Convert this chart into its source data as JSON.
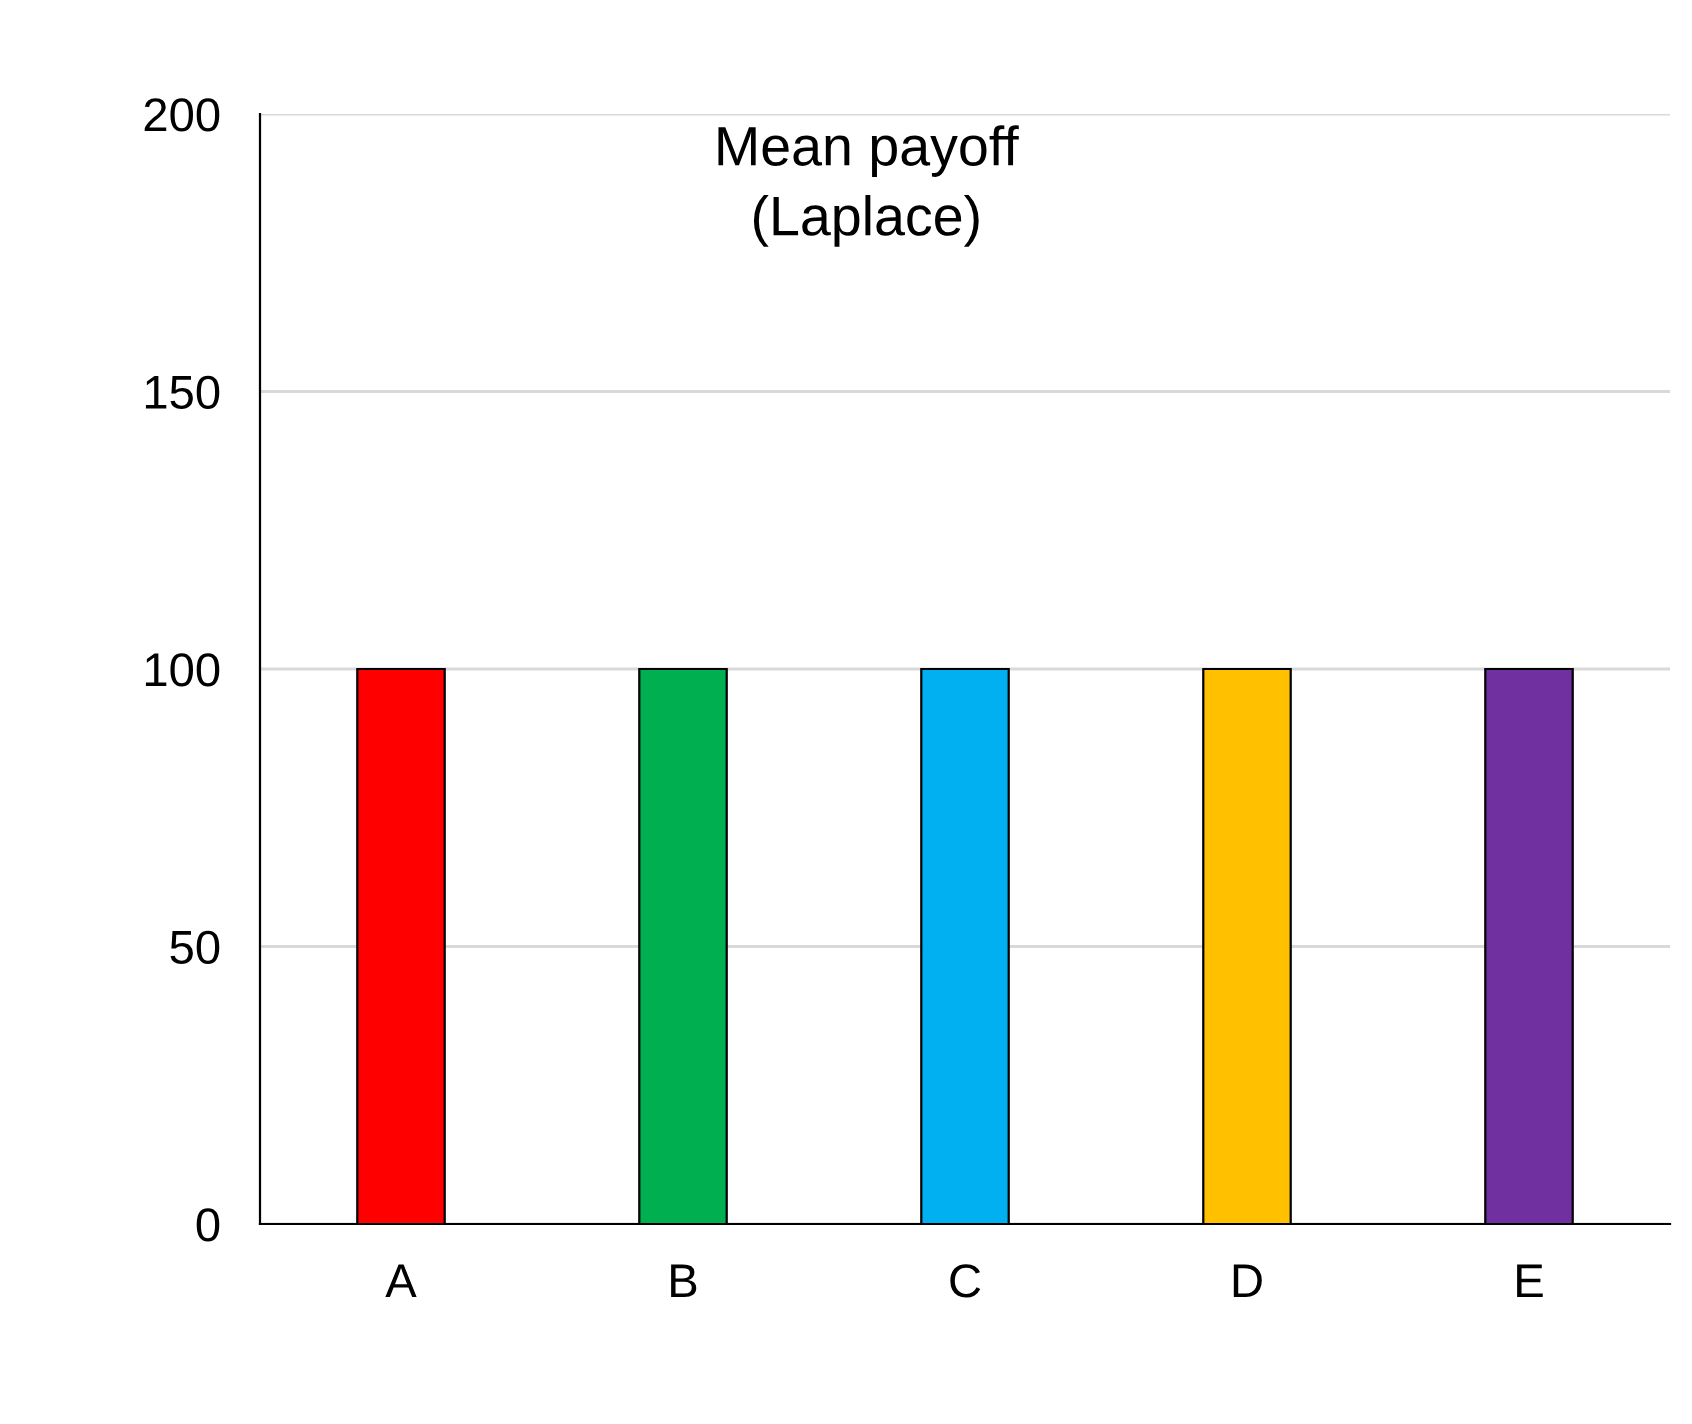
{
  "chart_data": {
    "type": "bar",
    "title": "Mean payoff\n(Laplace)",
    "categories": [
      "A",
      "B",
      "C",
      "D",
      "E"
    ],
    "values": [
      100,
      100,
      100,
      100,
      100
    ],
    "colors": [
      "#ff0000",
      "#00b050",
      "#00b0f0",
      "#ffc000",
      "#7030a0"
    ],
    "ylim": [
      0,
      200
    ],
    "yticks": [
      0,
      50,
      100,
      150,
      200
    ],
    "grid": "y"
  }
}
